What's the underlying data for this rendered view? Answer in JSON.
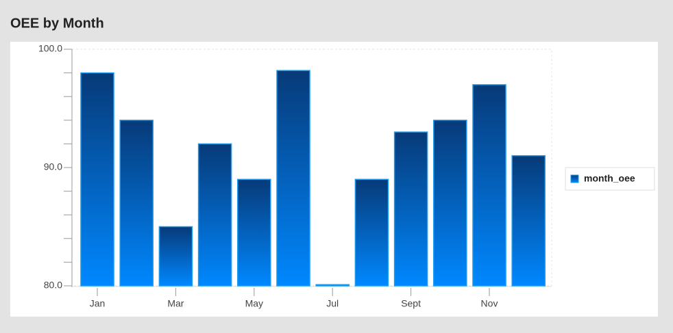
{
  "chart_data": {
    "type": "bar",
    "title": "OEE by Month",
    "categories": [
      "Jan",
      null,
      "Mar",
      null,
      "May",
      null,
      "Jul",
      null,
      "Sept",
      null,
      "Nov",
      null
    ],
    "series": [
      {
        "name": "month_oee",
        "gradient": [
          "#073a78",
          "#0088ff"
        ],
        "stroke": "#1a9cf0",
        "values": [
          98,
          94,
          85,
          92,
          89,
          98.2,
          80.1,
          89,
          93,
          94,
          97,
          91
        ]
      }
    ],
    "ylim": [
      80,
      100
    ],
    "yticks": [
      {
        "value": 80,
        "label": "80.0"
      },
      {
        "value": 90,
        "label": "90.0"
      },
      {
        "value": 100,
        "label": "100.0"
      }
    ],
    "yminorticks": [
      82,
      84,
      86,
      88,
      92,
      94,
      96,
      98
    ],
    "legend": "right"
  }
}
